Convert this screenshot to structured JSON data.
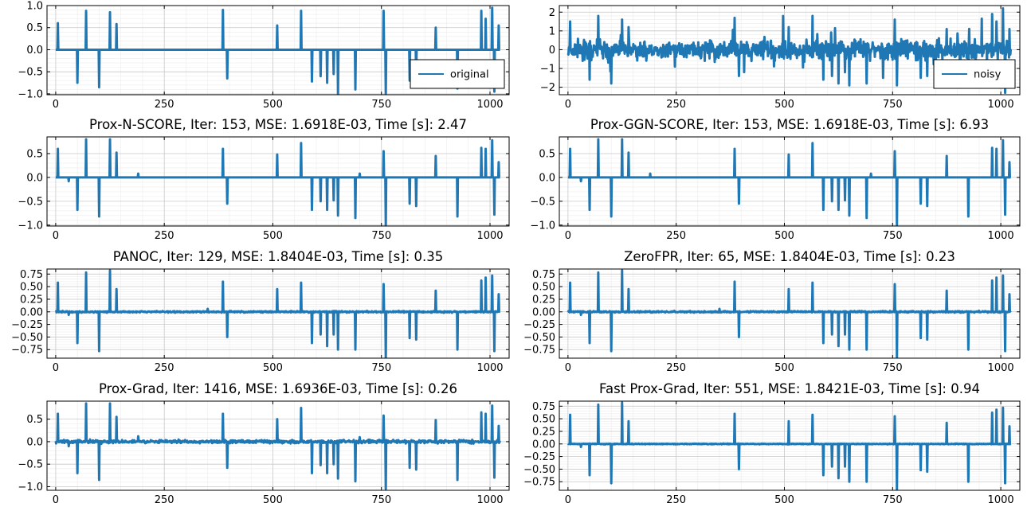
{
  "figure": {
    "line_color": "#1f77b4",
    "grid": true,
    "minor_grid": true
  },
  "chart_data": [
    {
      "id": "original",
      "type": "line",
      "title": "",
      "xlabel": "",
      "ylabel": "",
      "xlim": [
        -20,
        1044
      ],
      "ylim": [
        -1.02,
        1.0
      ],
      "xticks": [
        0,
        250,
        500,
        750,
        1000
      ],
      "xtick_labels": [
        "0",
        "250",
        "500",
        "750",
        "1000"
      ],
      "yticks": [
        -1.0,
        -0.5,
        0.0,
        0.5,
        1.0
      ],
      "ytick_labels": [
        "−1.0",
        "−0.5",
        "0.0",
        "0.5",
        "1.0"
      ],
      "legend": {
        "label": "original",
        "position": "lower-right"
      },
      "noise": 0,
      "spikes": [
        [
          5,
          0.6
        ],
        [
          50,
          -0.75
        ],
        [
          70,
          0.88
        ],
        [
          100,
          -0.85
        ],
        [
          125,
          0.85
        ],
        [
          140,
          0.58
        ],
        [
          385,
          0.9
        ],
        [
          395,
          -0.65
        ],
        [
          510,
          0.55
        ],
        [
          565,
          0.88
        ],
        [
          590,
          -0.72
        ],
        [
          610,
          -0.6
        ],
        [
          625,
          -0.75
        ],
        [
          640,
          -0.55
        ],
        [
          650,
          -1.0
        ],
        [
          690,
          -0.9
        ],
        [
          755,
          0.88
        ],
        [
          760,
          -1.0
        ],
        [
          815,
          -0.7
        ],
        [
          830,
          -0.7
        ],
        [
          875,
          0.5
        ],
        [
          925,
          -0.88
        ],
        [
          980,
          0.88
        ],
        [
          990,
          0.7
        ],
        [
          1005,
          0.95
        ],
        [
          1010,
          -0.95
        ],
        [
          1020,
          0.55
        ]
      ]
    },
    {
      "id": "noisy",
      "type": "line",
      "title": "",
      "xlabel": "",
      "ylabel": "",
      "xlim": [
        -20,
        1044
      ],
      "ylim": [
        -2.4,
        2.35
      ],
      "xticks": [
        0,
        250,
        500,
        750,
        1000
      ],
      "xtick_labels": [
        "0",
        "250",
        "500",
        "750",
        "1000"
      ],
      "yticks": [
        -2,
        -1,
        0,
        1,
        2
      ],
      "ytick_labels": [
        "−2",
        "−1",
        "0",
        "1",
        "2"
      ],
      "legend": {
        "label": "noisy",
        "position": "lower-right"
      },
      "noise": 0.35,
      "spikes": [
        [
          5,
          1.5
        ],
        [
          50,
          -1.6
        ],
        [
          70,
          1.8
        ],
        [
          100,
          -1.8
        ],
        [
          125,
          1.6
        ],
        [
          140,
          1.2
        ],
        [
          385,
          1.7
        ],
        [
          395,
          -1.4
        ],
        [
          510,
          1.2
        ],
        [
          565,
          1.8
        ],
        [
          590,
          -1.6
        ],
        [
          610,
          -1.4
        ],
        [
          625,
          -1.8
        ],
        [
          640,
          -1.2
        ],
        [
          650,
          -1.9
        ],
        [
          690,
          -1.8
        ],
        [
          755,
          1.6
        ],
        [
          760,
          -1.9
        ],
        [
          815,
          -1.5
        ],
        [
          830,
          -1.4
        ],
        [
          875,
          1.1
        ],
        [
          925,
          -1.8
        ],
        [
          980,
          1.9
        ],
        [
          990,
          1.5
        ],
        [
          1005,
          2.2
        ],
        [
          1010,
          -2.3
        ],
        [
          1020,
          1.1
        ]
      ]
    },
    {
      "id": "prox-n-score",
      "type": "line",
      "title": "Prox-N-SCORE, Iter: 153, MSE: 1.6918E-03, Time [s]: 2.47",
      "xlabel": "",
      "ylabel": "",
      "xlim": [
        -20,
        1044
      ],
      "ylim": [
        -1.02,
        0.85
      ],
      "xticks": [
        0,
        250,
        500,
        750,
        1000
      ],
      "xtick_labels": [
        "0",
        "250",
        "500",
        "750",
        "1000"
      ],
      "yticks": [
        -1.0,
        -0.5,
        0.0,
        0.5
      ],
      "ytick_labels": [
        "−1.0",
        "−0.5",
        "0.0",
        "0.5"
      ],
      "noise": 0,
      "spikes": [
        [
          5,
          0.6
        ],
        [
          30,
          -0.08
        ],
        [
          50,
          -0.68
        ],
        [
          70,
          0.8
        ],
        [
          100,
          -0.82
        ],
        [
          125,
          0.8
        ],
        [
          140,
          0.52
        ],
        [
          190,
          0.08
        ],
        [
          385,
          0.6
        ],
        [
          395,
          -0.55
        ],
        [
          510,
          0.48
        ],
        [
          565,
          0.72
        ],
        [
          590,
          -0.68
        ],
        [
          610,
          -0.5
        ],
        [
          625,
          -0.68
        ],
        [
          640,
          -0.48
        ],
        [
          650,
          -0.8
        ],
        [
          690,
          -0.85
        ],
        [
          700,
          0.08
        ],
        [
          755,
          0.55
        ],
        [
          760,
          -1.0
        ],
        [
          815,
          -0.55
        ],
        [
          830,
          -0.6
        ],
        [
          875,
          0.45
        ],
        [
          925,
          -0.82
        ],
        [
          980,
          0.62
        ],
        [
          990,
          0.6
        ],
        [
          1005,
          0.78
        ],
        [
          1010,
          -0.78
        ],
        [
          1020,
          0.32
        ]
      ]
    },
    {
      "id": "prox-ggn-score",
      "type": "line",
      "title": "Prox-GGN-SCORE, Iter: 153, MSE: 1.6918E-03, Time [s]: 6.93",
      "xlabel": "",
      "ylabel": "",
      "xlim": [
        -20,
        1044
      ],
      "ylim": [
        -1.02,
        0.85
      ],
      "xticks": [
        0,
        250,
        500,
        750,
        1000
      ],
      "xtick_labels": [
        "0",
        "250",
        "500",
        "750",
        "1000"
      ],
      "yticks": [
        -1.0,
        -0.5,
        0.0,
        0.5
      ],
      "ytick_labels": [
        "−1.0",
        "−0.5",
        "0.0",
        "0.5"
      ],
      "noise": 0,
      "spikes": [
        [
          5,
          0.6
        ],
        [
          30,
          -0.08
        ],
        [
          50,
          -0.68
        ],
        [
          70,
          0.8
        ],
        [
          100,
          -0.82
        ],
        [
          125,
          0.8
        ],
        [
          140,
          0.52
        ],
        [
          190,
          0.08
        ],
        [
          385,
          0.6
        ],
        [
          395,
          -0.55
        ],
        [
          510,
          0.48
        ],
        [
          565,
          0.72
        ],
        [
          590,
          -0.68
        ],
        [
          610,
          -0.5
        ],
        [
          625,
          -0.68
        ],
        [
          640,
          -0.48
        ],
        [
          650,
          -0.8
        ],
        [
          690,
          -0.85
        ],
        [
          700,
          0.08
        ],
        [
          755,
          0.55
        ],
        [
          760,
          -1.0
        ],
        [
          815,
          -0.55
        ],
        [
          830,
          -0.6
        ],
        [
          875,
          0.45
        ],
        [
          925,
          -0.82
        ],
        [
          980,
          0.62
        ],
        [
          990,
          0.6
        ],
        [
          1005,
          0.78
        ],
        [
          1010,
          -0.78
        ],
        [
          1020,
          0.32
        ]
      ]
    },
    {
      "id": "panoc",
      "type": "line",
      "title": "PANOC, Iter: 129, MSE: 1.8404E-03, Time [s]: 0.35",
      "xlabel": "",
      "ylabel": "",
      "xlim": [
        -20,
        1044
      ],
      "ylim": [
        -0.92,
        0.85
      ],
      "xticks": [
        0,
        250,
        500,
        750,
        1000
      ],
      "xtick_labels": [
        "0",
        "250",
        "500",
        "750",
        "1000"
      ],
      "yticks": [
        -0.75,
        -0.5,
        -0.25,
        0.0,
        0.25,
        0.5,
        0.75
      ],
      "ytick_labels": [
        "−0.75",
        "−0.50",
        "−0.25",
        "0.00",
        "0.25",
        "0.50",
        "0.75"
      ],
      "noise": 0.01,
      "spikes": [
        [
          5,
          0.58
        ],
        [
          30,
          -0.06
        ],
        [
          50,
          -0.62
        ],
        [
          70,
          0.78
        ],
        [
          100,
          -0.78
        ],
        [
          125,
          0.82
        ],
        [
          140,
          0.45
        ],
        [
          350,
          0.06
        ],
        [
          385,
          0.6
        ],
        [
          395,
          -0.5
        ],
        [
          510,
          0.45
        ],
        [
          565,
          0.58
        ],
        [
          590,
          -0.62
        ],
        [
          610,
          -0.45
        ],
        [
          625,
          -0.68
        ],
        [
          640,
          -0.45
        ],
        [
          650,
          -0.75
        ],
        [
          690,
          -0.75
        ],
        [
          755,
          0.55
        ],
        [
          760,
          -0.92
        ],
        [
          815,
          -0.52
        ],
        [
          830,
          -0.55
        ],
        [
          875,
          0.42
        ],
        [
          925,
          -0.75
        ],
        [
          980,
          0.62
        ],
        [
          990,
          0.68
        ],
        [
          1005,
          0.72
        ],
        [
          1010,
          -0.78
        ],
        [
          1020,
          0.35
        ]
      ]
    },
    {
      "id": "zerofpr",
      "type": "line",
      "title": "ZeroFPR, Iter: 65, MSE: 1.8404E-03, Time [s]: 0.23",
      "xlabel": "",
      "ylabel": "",
      "xlim": [
        -20,
        1044
      ],
      "ylim": [
        -0.92,
        0.85
      ],
      "xticks": [
        0,
        250,
        500,
        750,
        1000
      ],
      "xtick_labels": [
        "0",
        "250",
        "500",
        "750",
        "1000"
      ],
      "yticks": [
        -0.75,
        -0.5,
        -0.25,
        0.0,
        0.25,
        0.5,
        0.75
      ],
      "ytick_labels": [
        "−0.75",
        "−0.50",
        "−0.25",
        "0.00",
        "0.25",
        "0.50",
        "0.75"
      ],
      "noise": 0.01,
      "spikes": [
        [
          5,
          0.58
        ],
        [
          30,
          -0.06
        ],
        [
          50,
          -0.62
        ],
        [
          70,
          0.78
        ],
        [
          100,
          -0.78
        ],
        [
          125,
          0.82
        ],
        [
          140,
          0.45
        ],
        [
          350,
          0.06
        ],
        [
          385,
          0.6
        ],
        [
          395,
          -0.5
        ],
        [
          510,
          0.45
        ],
        [
          565,
          0.58
        ],
        [
          590,
          -0.62
        ],
        [
          610,
          -0.45
        ],
        [
          625,
          -0.68
        ],
        [
          640,
          -0.45
        ],
        [
          650,
          -0.75
        ],
        [
          690,
          -0.75
        ],
        [
          755,
          0.55
        ],
        [
          760,
          -0.92
        ],
        [
          815,
          -0.52
        ],
        [
          830,
          -0.55
        ],
        [
          875,
          0.42
        ],
        [
          925,
          -0.75
        ],
        [
          980,
          0.62
        ],
        [
          990,
          0.68
        ],
        [
          1005,
          0.72
        ],
        [
          1010,
          -0.78
        ],
        [
          1020,
          0.35
        ]
      ]
    },
    {
      "id": "prox-grad",
      "type": "line",
      "title": "Prox-Grad, Iter: 1416, MSE: 1.6936E-03, Time [s]: 0.26",
      "xlabel": "",
      "ylabel": "",
      "xlim": [
        -20,
        1044
      ],
      "ylim": [
        -1.08,
        0.9
      ],
      "xticks": [
        0,
        250,
        500,
        750,
        1000
      ],
      "xtick_labels": [
        "0",
        "250",
        "500",
        "750",
        "1000"
      ],
      "yticks": [
        -1.0,
        -0.5,
        0.0,
        0.5
      ],
      "ytick_labels": [
        "−1.0",
        "−0.5",
        "0.0",
        "0.5"
      ],
      "noise": 0.025,
      "spikes": [
        [
          5,
          0.62
        ],
        [
          30,
          -0.1
        ],
        [
          50,
          -0.7
        ],
        [
          70,
          0.85
        ],
        [
          100,
          -0.85
        ],
        [
          125,
          0.85
        ],
        [
          140,
          0.55
        ],
        [
          190,
          0.12
        ],
        [
          385,
          0.62
        ],
        [
          395,
          -0.58
        ],
        [
          510,
          0.5
        ],
        [
          565,
          0.75
        ],
        [
          590,
          -0.7
        ],
        [
          610,
          -0.52
        ],
        [
          625,
          -0.7
        ],
        [
          640,
          -0.5
        ],
        [
          650,
          -0.82
        ],
        [
          690,
          -0.88
        ],
        [
          700,
          0.1
        ],
        [
          755,
          0.58
        ],
        [
          760,
          -1.05
        ],
        [
          815,
          -0.58
        ],
        [
          830,
          -0.62
        ],
        [
          875,
          0.48
        ],
        [
          925,
          -0.85
        ],
        [
          980,
          0.65
        ],
        [
          990,
          0.62
        ],
        [
          1005,
          0.8
        ],
        [
          1010,
          -0.8
        ],
        [
          1020,
          0.35
        ]
      ]
    },
    {
      "id": "fast-prox-grad",
      "type": "line",
      "title": "Fast Prox-Grad, Iter: 551, MSE: 1.8421E-03, Time [s]: 0.94",
      "xlabel": "",
      "ylabel": "",
      "xlim": [
        -20,
        1044
      ],
      "ylim": [
        -0.92,
        0.85
      ],
      "xticks": [
        0,
        250,
        500,
        750,
        1000
      ],
      "xtick_labels": [
        "0",
        "250",
        "500",
        "750",
        "1000"
      ],
      "yticks": [
        -0.75,
        -0.5,
        -0.25,
        0.0,
        0.25,
        0.5,
        0.75
      ],
      "ytick_labels": [
        "−0.75",
        "−0.50",
        "−0.25",
        "0.00",
        "0.25",
        "0.50",
        "0.75"
      ],
      "noise": 0.005,
      "spikes": [
        [
          5,
          0.58
        ],
        [
          30,
          -0.06
        ],
        [
          50,
          -0.62
        ],
        [
          70,
          0.78
        ],
        [
          100,
          -0.78
        ],
        [
          125,
          0.82
        ],
        [
          140,
          0.45
        ],
        [
          385,
          0.6
        ],
        [
          395,
          -0.5
        ],
        [
          510,
          0.45
        ],
        [
          565,
          0.58
        ],
        [
          590,
          -0.62
        ],
        [
          610,
          -0.45
        ],
        [
          625,
          -0.68
        ],
        [
          640,
          -0.45
        ],
        [
          650,
          -0.75
        ],
        [
          690,
          -0.75
        ],
        [
          755,
          0.55
        ],
        [
          760,
          -0.92
        ],
        [
          815,
          -0.52
        ],
        [
          830,
          -0.55
        ],
        [
          875,
          0.42
        ],
        [
          925,
          -0.75
        ],
        [
          980,
          0.62
        ],
        [
          990,
          0.68
        ],
        [
          1005,
          0.72
        ],
        [
          1010,
          -0.78
        ],
        [
          1020,
          0.35
        ]
      ]
    }
  ]
}
